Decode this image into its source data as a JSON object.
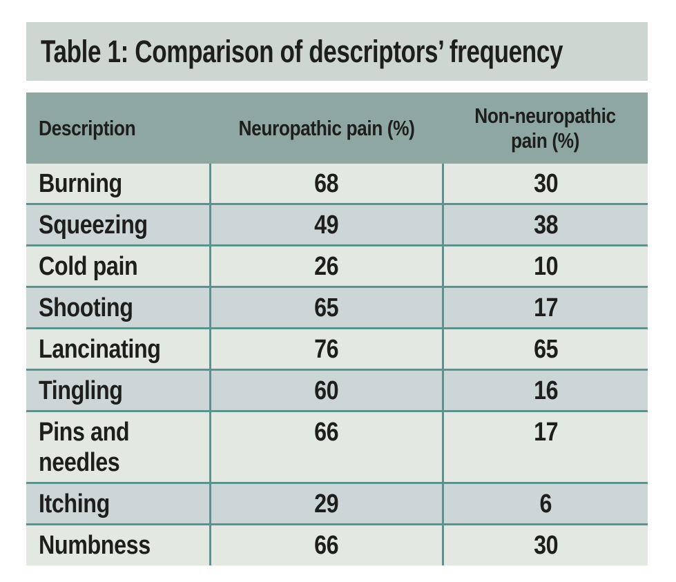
{
  "title": "Table 1: Comparison of descriptors’ frequency",
  "table": {
    "columns": [
      "Description",
      "Neuropathic pain (%)",
      "Non-neuropathic pain (%)"
    ],
    "rows": [
      {
        "description": "Burning",
        "neuropathic": "68",
        "non_neuropathic": "30"
      },
      {
        "description": "Squeezing",
        "neuropathic": "49",
        "non_neuropathic": "38"
      },
      {
        "description": "Cold pain",
        "neuropathic": "26",
        "non_neuropathic": "10"
      },
      {
        "description": "Shooting",
        "neuropathic": "65",
        "non_neuropathic": "17"
      },
      {
        "description": "Lancinating",
        "neuropathic": "76",
        "non_neuropathic": "65"
      },
      {
        "description": "Tingling",
        "neuropathic": "60",
        "non_neuropathic": "16"
      },
      {
        "description": "Pins and needles",
        "neuropathic": "66",
        "non_neuropathic": "17"
      },
      {
        "description": "Itching",
        "neuropathic": "29",
        "non_neuropathic": "6"
      },
      {
        "description": "Numbness",
        "neuropathic": "66",
        "non_neuropathic": "30"
      }
    ]
  },
  "colors": {
    "page_background": "#ffffff",
    "title_band_background": "#ced6d2",
    "header_background": "#8fa7a3",
    "row_light_background": "#e4e8e3",
    "row_dark_background": "#cdd6d7",
    "divider_teal": "#5d908e",
    "text": "#1e1e1c"
  }
}
